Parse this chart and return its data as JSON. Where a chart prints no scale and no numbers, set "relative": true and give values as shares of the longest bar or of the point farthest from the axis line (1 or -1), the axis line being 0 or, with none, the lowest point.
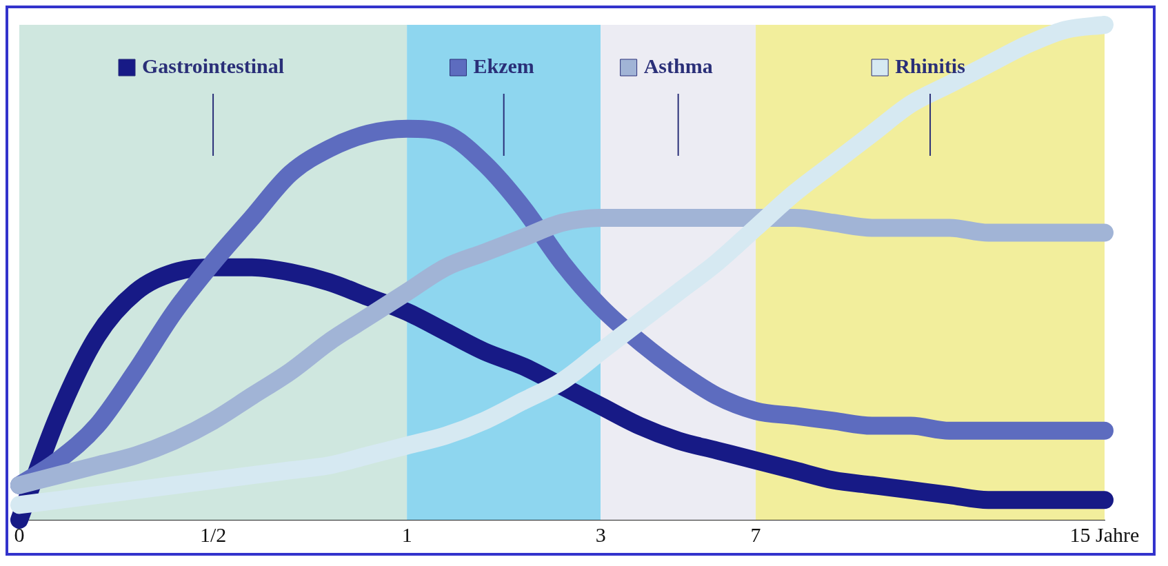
{
  "chart_data": {
    "type": "line",
    "relative": true,
    "legend": "top",
    "grid": false,
    "marker": "none",
    "categories": [
      "0",
      null,
      null,
      null,
      null,
      "1/2",
      null,
      null,
      null,
      null,
      "1",
      null,
      null,
      null,
      null,
      "3",
      null,
      null,
      null,
      "7",
      null,
      null,
      null,
      null,
      null,
      null,
      null,
      null,
      "15 Jahre"
    ],
    "bands": [
      {
        "axis": "x",
        "from": "0",
        "to": "1",
        "color": "#cfe7df"
      },
      {
        "axis": "x",
        "from": "1",
        "to": "3",
        "color": "#8ed6ef"
      },
      {
        "axis": "x",
        "from": "3",
        "to": "7",
        "color": "#ececf3"
      },
      {
        "axis": "x",
        "from": "7",
        "to": "15 Jahre",
        "color": "#f2ee9c"
      }
    ],
    "series": [
      {
        "name": "Rhinitis",
        "color": "#d6e9f2",
        "values": [
          0.03,
          0.04,
          0.05,
          0.06,
          0.07,
          0.08,
          0.09,
          0.1,
          0.11,
          0.13,
          0.15,
          0.17,
          0.2,
          0.24,
          0.28,
          0.34,
          0.4,
          0.46,
          0.52,
          0.59,
          0.66,
          0.72,
          0.78,
          0.84,
          0.88,
          0.92,
          0.96,
          0.99,
          1
        ]
      },
      {
        "name": "Asthma",
        "color": "#a1b4d6",
        "values": [
          0.07,
          0.09,
          0.11,
          0.13,
          0.16,
          0.2,
          0.25,
          0.3,
          0.36,
          0.41,
          0.46,
          0.51,
          0.54,
          0.57,
          0.6,
          0.61,
          0.61,
          0.61,
          0.61,
          0.61,
          0.61,
          0.6,
          0.59,
          0.59,
          0.59,
          0.58,
          0.58,
          0.58,
          0.58
        ]
      },
      {
        "name": "Ekzem",
        "color": "#5d6cbf",
        "values": [
          0.07,
          0.12,
          0.19,
          0.3,
          0.42,
          0.52,
          0.61,
          0.7,
          0.75,
          0.78,
          0.79,
          0.78,
          0.72,
          0.63,
          0.52,
          0.43,
          0.36,
          0.3,
          0.25,
          0.22,
          0.21,
          0.2,
          0.19,
          0.19,
          0.18,
          0.18,
          0.18,
          0.18,
          0.18
        ]
      },
      {
        "name": "Gastrointestinal",
        "color": "#171a86",
        "values": [
          0,
          0.21,
          0.37,
          0.46,
          0.5,
          0.51,
          0.51,
          0.5,
          0.48,
          0.45,
          0.42,
          0.38,
          0.34,
          0.31,
          0.27,
          0.23,
          0.19,
          0.16,
          0.14,
          0.12,
          0.1,
          0.08,
          0.07,
          0.06,
          0.05,
          0.04,
          0.04,
          0.04,
          0.04
        ]
      }
    ]
  }
}
